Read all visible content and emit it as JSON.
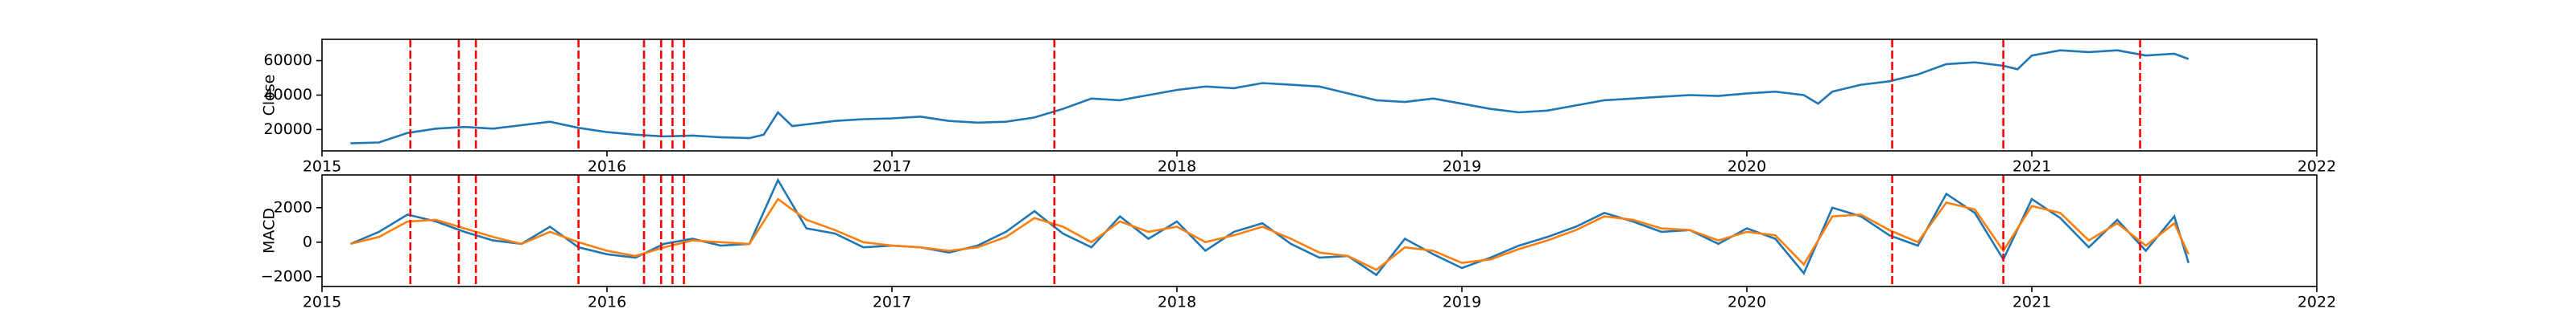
{
  "chart_data": [
    {
      "type": "line",
      "y_label": "Close",
      "x": [
        2015.1,
        2015.2,
        2015.3,
        2015.4,
        2015.5,
        2015.6,
        2015.7,
        2015.8,
        2015.9,
        2016.0,
        2016.1,
        2016.2,
        2016.3,
        2016.4,
        2016.5,
        2016.55,
        2016.6,
        2016.65,
        2016.7,
        2016.8,
        2016.9,
        2017.0,
        2017.1,
        2017.2,
        2017.3,
        2017.4,
        2017.5,
        2017.6,
        2017.7,
        2017.8,
        2017.9,
        2018.0,
        2018.1,
        2018.2,
        2018.3,
        2018.4,
        2018.5,
        2018.6,
        2018.7,
        2018.8,
        2018.9,
        2019.0,
        2019.1,
        2019.2,
        2019.3,
        2019.4,
        2019.5,
        2019.6,
        2019.7,
        2019.8,
        2019.9,
        2020.0,
        2020.1,
        2020.2,
        2020.25,
        2020.3,
        2020.4,
        2020.5,
        2020.6,
        2020.7,
        2020.8,
        2020.9,
        2020.95,
        2021.0,
        2021.1,
        2021.2,
        2021.3,
        2021.4,
        2021.5,
        2021.55
      ],
      "series": [
        {
          "color": "#1f77b4",
          "values": [
            12000,
            12500,
            18000,
            20500,
            21500,
            20500,
            22500,
            24500,
            21000,
            18500,
            17000,
            16000,
            16500,
            15500,
            15000,
            17000,
            30000,
            22000,
            23000,
            25000,
            26000,
            26500,
            27500,
            25000,
            24000,
            24500,
            27000,
            32000,
            38000,
            37000,
            40000,
            43000,
            45000,
            44000,
            47000,
            46000,
            45000,
            41000,
            37000,
            36000,
            38000,
            35000,
            32000,
            30000,
            31000,
            34000,
            37000,
            38000,
            39000,
            40000,
            39500,
            41000,
            42000,
            40000,
            35000,
            42000,
            46000,
            48000,
            52000,
            58000,
            59000,
            57000,
            55000,
            63000,
            66000,
            65000,
            66000,
            63000,
            64000,
            61000
          ]
        }
      ],
      "xlim": [
        2015,
        2022
      ],
      "xticks": [
        2015,
        2016,
        2017,
        2018,
        2019,
        2020,
        2021,
        2022
      ],
      "ylim": [
        7600,
        72400
      ],
      "yticks": [
        20000,
        40000,
        60000
      ],
      "vlines": [
        2015.31,
        2015.48,
        2015.54,
        2015.9,
        2016.13,
        2016.19,
        2016.23,
        2016.27,
        2017.57,
        2020.51,
        2020.9,
        2021.38
      ],
      "vline_color": "#ff0000"
    },
    {
      "type": "line",
      "y_label": "MACD",
      "x": [
        2015.1,
        2015.2,
        2015.3,
        2015.4,
        2015.5,
        2015.6,
        2015.7,
        2015.8,
        2015.9,
        2016.0,
        2016.1,
        2016.2,
        2016.3,
        2016.4,
        2016.5,
        2016.6,
        2016.7,
        2016.8,
        2016.9,
        2017.0,
        2017.1,
        2017.2,
        2017.3,
        2017.4,
        2017.5,
        2017.6,
        2017.7,
        2017.8,
        2017.9,
        2018.0,
        2018.1,
        2018.2,
        2018.3,
        2018.4,
        2018.5,
        2018.6,
        2018.7,
        2018.8,
        2018.9,
        2019.0,
        2019.1,
        2019.2,
        2019.3,
        2019.4,
        2019.5,
        2019.6,
        2019.7,
        2019.8,
        2019.9,
        2020.0,
        2020.1,
        2020.2,
        2020.3,
        2020.4,
        2020.5,
        2020.6,
        2020.7,
        2020.8,
        2020.9,
        2021.0,
        2021.1,
        2021.2,
        2021.3,
        2021.4,
        2021.5,
        2021.55
      ],
      "series": [
        {
          "color": "#1f77b4",
          "values": [
            -100,
            600,
            1600,
            1200,
            600,
            100,
            -100,
            900,
            -300,
            -700,
            -900,
            -100,
            200,
            -200,
            -100,
            3600,
            800,
            500,
            -300,
            -200,
            -300,
            -600,
            -200,
            600,
            1800,
            500,
            -300,
            1500,
            200,
            1200,
            -500,
            600,
            1100,
            -100,
            -900,
            -800,
            -1900,
            200,
            -700,
            -1500,
            -900,
            -200,
            300,
            900,
            1700,
            1200,
            600,
            700,
            -100,
            800,
            200,
            -1800,
            2000,
            1500,
            400,
            -200,
            2800,
            1700,
            -1000,
            2500,
            1400,
            -300,
            1300,
            -500,
            1500,
            -1200
          ]
        },
        {
          "color": "#ff7f0e",
          "values": [
            -100,
            300,
            1200,
            1300,
            800,
            300,
            -100,
            600,
            0,
            -500,
            -800,
            -300,
            100,
            0,
            -100,
            2500,
            1300,
            700,
            0,
            -200,
            -300,
            -500,
            -300,
            300,
            1400,
            900,
            0,
            1200,
            600,
            900,
            0,
            400,
            900,
            200,
            -600,
            -800,
            -1600,
            -300,
            -500,
            -1200,
            -1000,
            -400,
            100,
            700,
            1500,
            1300,
            800,
            700,
            100,
            600,
            400,
            -1300,
            1500,
            1600,
            700,
            0,
            2300,
            1900,
            -500,
            2100,
            1700,
            100,
            1100,
            -200,
            1100,
            -700
          ]
        }
      ],
      "xlim": [
        2015,
        2022
      ],
      "xticks": [
        2015,
        2016,
        2017,
        2018,
        2019,
        2020,
        2021,
        2022
      ],
      "ylim": [
        -2570,
        3900
      ],
      "yticks": [
        {
          "value": -2000,
          "label": "−2000"
        },
        0,
        2000
      ],
      "vlines": [
        2015.31,
        2015.48,
        2015.54,
        2015.9,
        2016.13,
        2016.19,
        2016.23,
        2016.27,
        2017.57,
        2020.51,
        2020.9,
        2021.38
      ],
      "vline_color": "#ff0000"
    }
  ]
}
